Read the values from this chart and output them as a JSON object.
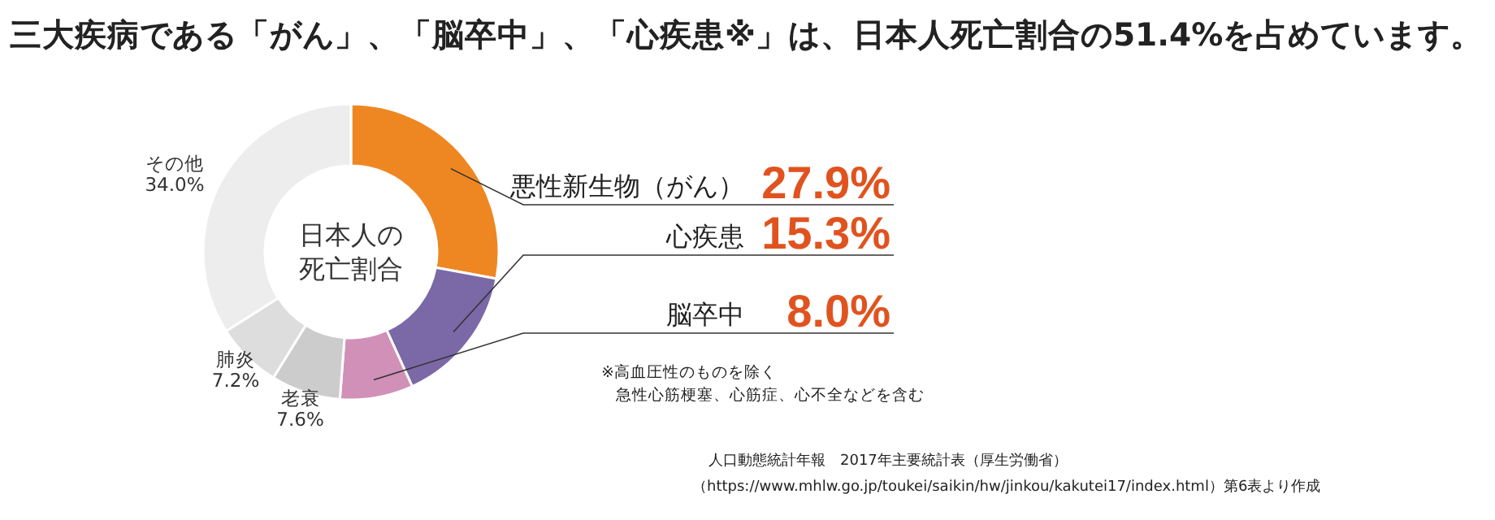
{
  "chart_data": {
    "type": "donut",
    "title": "三大疾病である「がん」、「脳卒中」、「心疾患※」は、日本人死亡割合の51.4%を占めています。",
    "categories": [
      "悪性新生物（がん）",
      "心疾患",
      "脳卒中",
      "老衰",
      "肺炎",
      "その他"
    ],
    "values": [
      27.9,
      15.3,
      8.0,
      7.6,
      7.2,
      34.0
    ],
    "value_labels": [
      "27.9%",
      "15.3%",
      "8.0%",
      "7.6%",
      "7.2%",
      "34.0%"
    ],
    "colors": [
      "#ee8722",
      "#7b68a6",
      "#d190b8",
      "#cccccc",
      "#dddddd",
      "#ededed"
    ],
    "annotations": [
      "日本人の死亡割合",
      "※高血圧性のものを除く",
      "急性心筋梗塞、心筋症、心不全などを含む",
      "人口動態統計年報　2017年主要統計表（厚生労働省）",
      "（https://www.mhlw.go.jp/toukei/saikin/hw/jinkou/kakutei17/index.html）第6表より作成"
    ]
  }
}
